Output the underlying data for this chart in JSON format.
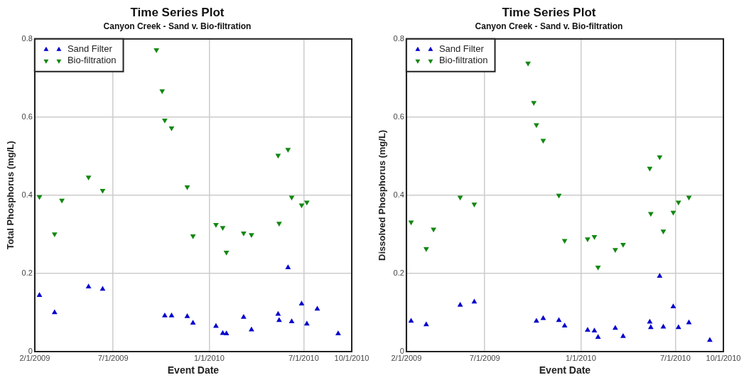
{
  "chart_data": [
    {
      "type": "scatter",
      "title": "Time Series Plot",
      "subtitle": "Canyon Creek - Sand v. Bio-filtration",
      "xlabel": "Event Date",
      "ylabel": "Total Phosphorus (mg/L)",
      "xlim": [
        "2009-02-01",
        "2010-10-01"
      ],
      "xticks": [
        {
          "value": "2009-02-01",
          "label": "2/1/2009"
        },
        {
          "value": "2009-07-01",
          "label": "7/1/2009"
        },
        {
          "value": "2010-01-01",
          "label": "1/1/2010"
        },
        {
          "value": "2010-07-01",
          "label": "7/1/2010"
        },
        {
          "value": "2010-10-01",
          "label": "10/1/2010"
        }
      ],
      "ylim": [
        0,
        0.8
      ],
      "yticks": [
        0,
        0.2,
        0.4,
        0.6,
        0.8
      ],
      "grid": true,
      "legend": "top left",
      "series": [
        {
          "name": "Sand Filter",
          "color": "#0000cc",
          "marker": "triangle",
          "x": [
            "2009-02-10",
            "2009-03-11",
            "2009-05-15",
            "2009-06-11",
            "2009-10-08",
            "2009-10-21",
            "2009-11-20",
            "2009-12-01",
            "2010-01-14",
            "2010-01-27",
            "2010-02-03",
            "2010-03-08",
            "2010-03-23",
            "2010-05-13",
            "2010-05-15",
            "2010-06-01",
            "2010-06-08",
            "2010-06-27",
            "2010-07-07",
            "2010-07-27",
            "2010-09-05"
          ],
          "values": [
            0.144,
            0.1,
            0.166,
            0.16,
            0.092,
            0.092,
            0.09,
            0.073,
            0.065,
            0.047,
            0.046,
            0.088,
            0.056,
            0.096,
            0.08,
            0.215,
            0.077,
            0.122,
            0.071,
            0.109,
            0.046
          ]
        },
        {
          "name": "Bio-filtration",
          "color": "#118811",
          "marker": "triangle-down",
          "x": [
            "2009-02-10",
            "2009-03-11",
            "2009-03-25",
            "2009-05-15",
            "2009-06-11",
            "2009-09-22",
            "2009-10-03",
            "2009-10-08",
            "2009-10-21",
            "2009-11-20",
            "2009-12-01",
            "2010-01-14",
            "2010-01-27",
            "2010-02-03",
            "2010-03-08",
            "2010-03-23",
            "2010-05-13",
            "2010-05-15",
            "2010-06-01",
            "2010-06-08",
            "2010-06-27",
            "2010-07-07"
          ],
          "values": [
            0.396,
            0.301,
            0.387,
            0.446,
            0.412,
            0.772,
            0.667,
            0.592,
            0.572,
            0.421,
            0.296,
            0.325,
            0.317,
            0.254,
            0.303,
            0.299,
            0.502,
            0.328,
            0.517,
            0.395,
            0.375,
            0.382
          ]
        }
      ]
    },
    {
      "type": "scatter",
      "title": "Time Series Plot",
      "subtitle": "Canyon Creek - Sand v. Bio-filtration",
      "xlabel": "Event Date",
      "ylabel": "Dissolved Phosphorus (mg/L)",
      "xlim": [
        "2009-02-01",
        "2010-10-01"
      ],
      "xticks": [
        {
          "value": "2009-02-01",
          "label": "2/1/2009"
        },
        {
          "value": "2009-07-01",
          "label": "7/1/2009"
        },
        {
          "value": "2010-01-01",
          "label": "1/1/2010"
        },
        {
          "value": "2010-07-01",
          "label": "7/1/2010"
        },
        {
          "value": "2010-10-01",
          "label": "10/1/2010"
        }
      ],
      "ylim": [
        0,
        0.8
      ],
      "yticks": [
        0,
        0.2,
        0.4,
        0.6,
        0.8
      ],
      "grid": true,
      "legend": "top left",
      "series": [
        {
          "name": "Sand Filter",
          "color": "#0000cc",
          "marker": "triangle",
          "x": [
            "2009-02-10",
            "2009-03-11",
            "2009-05-15",
            "2009-06-11",
            "2009-10-08",
            "2009-10-21",
            "2009-11-20",
            "2009-12-01",
            "2010-01-14",
            "2010-01-27",
            "2010-02-03",
            "2010-03-08",
            "2010-03-23",
            "2010-05-13",
            "2010-05-15",
            "2010-06-01",
            "2010-06-08",
            "2010-06-27",
            "2010-07-07",
            "2010-07-27",
            "2010-09-05"
          ],
          "values": [
            0.078,
            0.069,
            0.119,
            0.127,
            0.078,
            0.085,
            0.08,
            0.066,
            0.055,
            0.053,
            0.037,
            0.06,
            0.039,
            0.076,
            0.062,
            0.193,
            0.063,
            0.115,
            0.062,
            0.074,
            0.029
          ]
        },
        {
          "name": "Bio-filtration",
          "color": "#118811",
          "marker": "triangle-down",
          "x": [
            "2009-02-10",
            "2009-03-11",
            "2009-03-25",
            "2009-05-15",
            "2009-06-11",
            "2009-09-22",
            "2009-10-03",
            "2009-10-08",
            "2009-10-21",
            "2009-11-20",
            "2009-12-01",
            "2010-01-14",
            "2010-01-27",
            "2010-02-03",
            "2010-03-08",
            "2010-03-23",
            "2010-05-13",
            "2010-05-15",
            "2010-06-01",
            "2010-06-08",
            "2010-06-27",
            "2010-07-07",
            "2010-07-27"
          ],
          "values": [
            0.331,
            0.263,
            0.313,
            0.395,
            0.377,
            0.738,
            0.637,
            0.58,
            0.54,
            0.4,
            0.284,
            0.288,
            0.294,
            0.216,
            0.261,
            0.274,
            0.469,
            0.353,
            0.498,
            0.308,
            0.356,
            0.382,
            0.395
          ]
        }
      ]
    }
  ]
}
